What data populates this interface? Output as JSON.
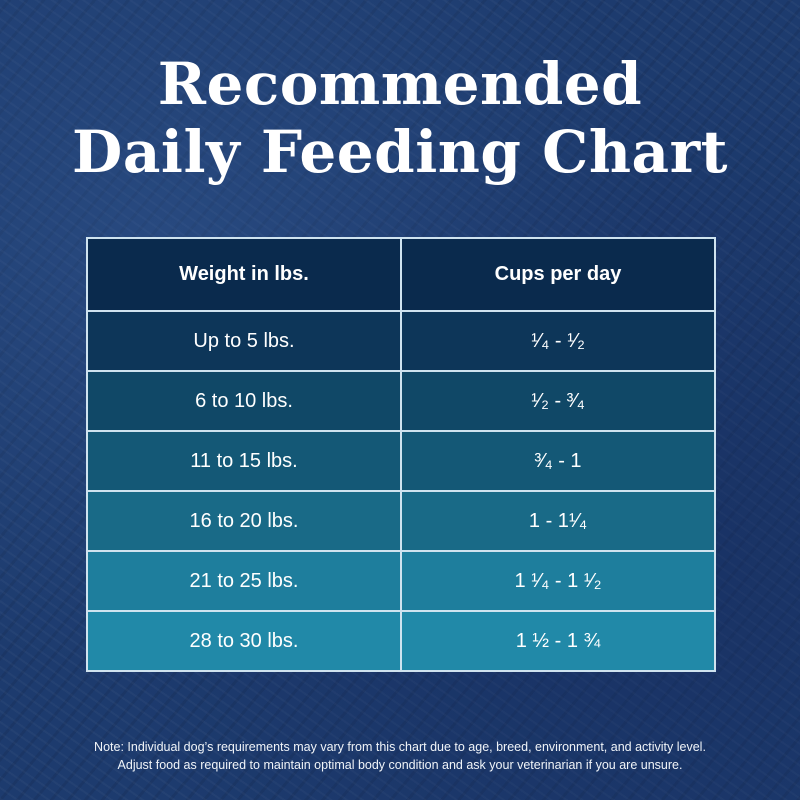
{
  "title": {
    "line1": "Recommended",
    "line2": "Daily Feeding Chart"
  },
  "table": {
    "headers": [
      "Weight in lbs.",
      "Cups per day"
    ],
    "rows": [
      {
        "weight": "Up to 5 lbs.",
        "cups": "¹⁄₄ - ¹⁄₂",
        "color": "#0d3659"
      },
      {
        "weight": "6 to 10 lbs.",
        "cups": "¹⁄₂ - ³⁄₄",
        "color": "#104867"
      },
      {
        "weight": "11 to 15 lbs.",
        "cups": "³⁄₄ - 1",
        "color": "#145876"
      },
      {
        "weight": "16 to 20 lbs.",
        "cups": "1 - 1¹⁄₄",
        "color": "#196a87"
      },
      {
        "weight": "21 to 25 lbs.",
        "cups": "1 ¹⁄₄ - 1 ¹⁄₂",
        "color": "#1e7e9d"
      },
      {
        "weight": "28 to 30 lbs.",
        "cups": "1 ½ - 1 ¾",
        "color": "#2189a8"
      }
    ]
  },
  "note": {
    "line1": "Note: Individual dog’s requirements may vary from this chart due to age, breed, environment, and activity level.",
    "line2": "Adjust food as required to maintain optimal body condition and ask your veterinarian if you are unsure."
  }
}
